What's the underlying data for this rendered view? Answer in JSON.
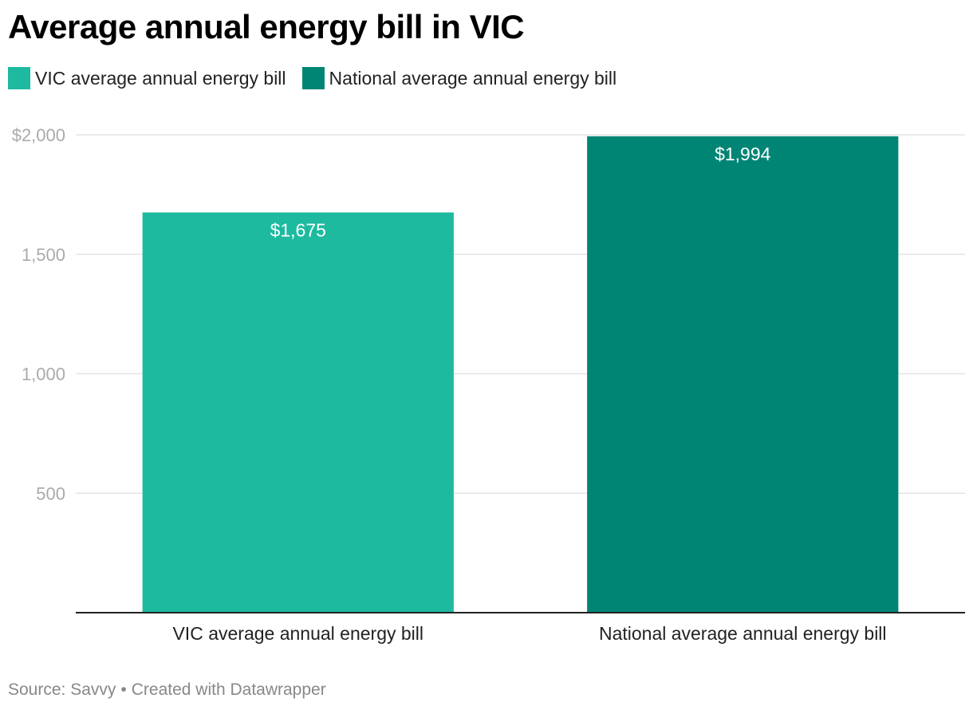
{
  "title": "Average annual energy bill in VIC",
  "legend": [
    {
      "label": "VIC average annual energy bill",
      "color": "#1dba9f"
    },
    {
      "label": "National average annual energy bill",
      "color": "#008575"
    }
  ],
  "footer": {
    "source": "Source: Savvy",
    "separator": "•",
    "credit": "Created with Datawrapper"
  },
  "chart_data": {
    "type": "bar",
    "title": "Average annual energy bill in VIC",
    "categories": [
      "VIC average annual energy bill",
      "National average annual energy bill"
    ],
    "values": [
      1675,
      1994
    ],
    "data_labels": [
      "$1,675",
      "$1,994"
    ],
    "colors": [
      "#1dba9f",
      "#008575"
    ],
    "ylim": [
      0,
      2000
    ],
    "yticks": [
      500,
      1000,
      1500,
      2000
    ],
    "ytick_labels": [
      "500",
      "1,000",
      "1,500",
      "$2,000"
    ],
    "xlabel": "",
    "ylabel": "",
    "grid": true,
    "legend_position": "top-left"
  }
}
